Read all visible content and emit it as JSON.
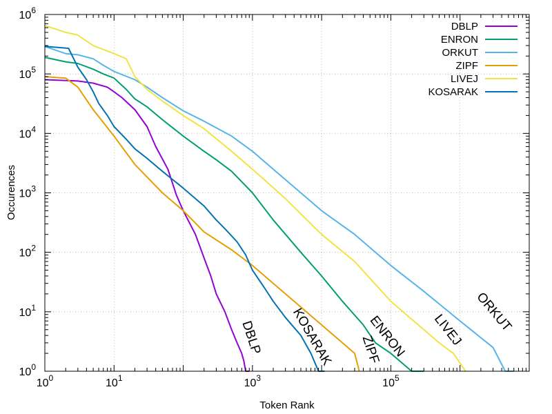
{
  "chart_data": {
    "type": "line",
    "xlabel": "Token Rank",
    "ylabel": "Occurences",
    "xscale": "log",
    "yscale": "log",
    "xlim": [
      1,
      10000000
    ],
    "ylim": [
      1,
      1000000
    ],
    "x_ticks": [
      {
        "value": 1,
        "base": "10",
        "exp": "0"
      },
      {
        "value": 10,
        "base": "10",
        "exp": "1"
      },
      {
        "value": 1000,
        "base": "10",
        "exp": "3"
      },
      {
        "value": 100000,
        "base": "10",
        "exp": "5"
      }
    ],
    "y_ticks": [
      {
        "value": 1,
        "base": "10",
        "exp": "0"
      },
      {
        "value": 10,
        "base": "10",
        "exp": "1"
      },
      {
        "value": 100,
        "base": "10",
        "exp": "2"
      },
      {
        "value": 1000,
        "base": "10",
        "exp": "3"
      },
      {
        "value": 10000,
        "base": "10",
        "exp": "4"
      },
      {
        "value": 100000,
        "base": "10",
        "exp": "5"
      },
      {
        "value": 1000000,
        "base": "10",
        "exp": "6"
      }
    ],
    "grid": true,
    "legend_position": "top-right",
    "series": [
      {
        "name": "DBLP",
        "color": "#9400d3",
        "x": [
          1,
          3,
          5,
          8,
          10,
          13,
          20,
          30,
          40,
          60,
          80,
          100,
          150,
          200,
          250,
          300,
          400,
          500,
          600,
          700,
          750,
          800,
          900
        ],
        "y": [
          80000,
          76000,
          70000,
          60000,
          50000,
          40000,
          25000,
          13000,
          6000,
          2500,
          900,
          500,
          200,
          80,
          40,
          20,
          10,
          5,
          3,
          2,
          1.5,
          1,
          1
        ],
        "inline_label": "DBLP",
        "label_x": 850,
        "label_y": 3.5,
        "label_angle": 72
      },
      {
        "name": "ENRON",
        "color": "#009e73",
        "x": [
          1,
          2,
          3,
          5,
          7,
          10,
          15,
          20,
          30,
          50,
          100,
          200,
          300,
          500,
          1000,
          2000,
          5000,
          10000,
          20000,
          40000,
          60000,
          100000,
          200000,
          300000
        ],
        "y": [
          190000,
          160000,
          150000,
          120000,
          100000,
          85000,
          55000,
          38000,
          28000,
          17000,
          9000,
          5000,
          3600,
          2300,
          1000,
          350,
          100,
          40,
          15,
          6,
          3,
          2,
          1,
          1
        ],
        "inline_label": "ENRON",
        "label_x": 80000,
        "label_y": 3.5,
        "label_angle": 52
      },
      {
        "name": "ORKUT",
        "color": "#56b4e9",
        "x": [
          1,
          2,
          3,
          5,
          7,
          10,
          20,
          30,
          50,
          100,
          200,
          500,
          1000,
          2000,
          5000,
          10000,
          30000,
          100000,
          300000,
          1000000,
          3000000,
          4500000,
          6000000
        ],
        "y": [
          290000,
          220000,
          210000,
          180000,
          140000,
          110000,
          80000,
          60000,
          40000,
          24000,
          16000,
          9000,
          5000,
          2500,
          1000,
          500,
          200,
          60,
          22,
          7,
          2.5,
          1,
          1
        ],
        "inline_label": "ORKUT",
        "label_x": 2800000,
        "label_y": 9,
        "label_angle": 50
      },
      {
        "name": "ZIPF",
        "color": "#e69f00",
        "x": [
          1,
          2,
          3,
          5,
          10,
          20,
          50,
          100,
          200,
          500,
          1000,
          2000,
          5000,
          10000,
          20000,
          30000,
          35000
        ],
        "y": [
          90000,
          85000,
          60000,
          25000,
          9000,
          3000,
          1000,
          500,
          220,
          110,
          60,
          30,
          12,
          6,
          3,
          2,
          1
        ],
        "inline_label": "ZIPF",
        "label_x": 45000,
        "label_y": 2.2,
        "label_angle": 72
      },
      {
        "name": "LIVEJ",
        "color": "#f0e442",
        "x": [
          1,
          2,
          3,
          5,
          10,
          15,
          20,
          30,
          50,
          100,
          200,
          500,
          1000,
          3000,
          10000,
          30000,
          100000,
          300000,
          500000,
          800000,
          1200000
        ],
        "y": [
          650000,
          500000,
          450000,
          300000,
          220000,
          180000,
          90000,
          55000,
          35000,
          20000,
          12000,
          5000,
          2500,
          800,
          200,
          70,
          15,
          5,
          3,
          2,
          1
        ],
        "inline_label": "LIVEJ",
        "label_x": 600000,
        "label_y": 4.5,
        "label_angle": 52
      },
      {
        "name": "KOSARAK",
        "color": "#0072b2",
        "x": [
          1,
          2.2,
          3,
          4,
          5,
          6,
          8,
          10,
          15,
          20,
          30,
          50,
          100,
          200,
          300,
          400,
          600,
          800,
          1000,
          1500,
          2000,
          3000,
          5000,
          7000,
          9000,
          11000
        ],
        "y": [
          290000,
          270000,
          130000,
          80000,
          50000,
          32000,
          20000,
          13000,
          8000,
          5500,
          3800,
          2300,
          1200,
          600,
          350,
          250,
          150,
          90,
          50,
          25,
          15,
          8,
          4,
          2,
          1,
          1
        ],
        "inline_label": "KOSARAK",
        "label_x": 6500,
        "label_y": 3.5,
        "label_angle": 60
      }
    ]
  }
}
